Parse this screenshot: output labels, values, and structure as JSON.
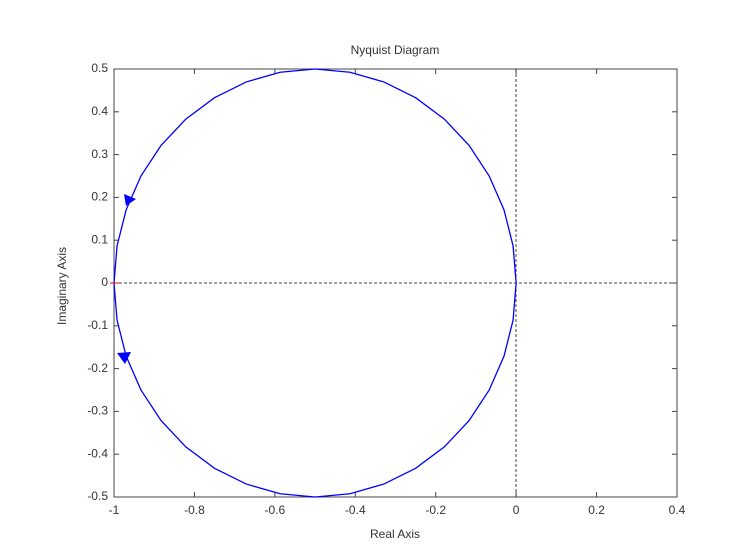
{
  "chart_data": {
    "type": "line",
    "title": "Nyquist Diagram",
    "x_label": "Real Axis",
    "y_label": "Imaginary Axis",
    "x": [
      -1,
      -0.9924,
      -0.9698,
      -0.933,
      -0.883,
      -0.8214,
      -0.75,
      -0.671,
      -0.5868,
      -0.5,
      -0.4132,
      -0.329,
      -0.25,
      -0.1786,
      -0.117,
      -0.067,
      -0.0302,
      -0.0076,
      0,
      -0.0076,
      -0.0302,
      -0.067,
      -0.117,
      -0.1786,
      -0.25,
      -0.329,
      -0.4132,
      -0.5,
      -0.5868,
      -0.671,
      -0.75,
      -0.8214,
      -0.883,
      -0.933,
      -0.9698,
      -0.9924,
      -1
    ],
    "series": [
      {
        "color": "#0000ff",
        "values": [
          0,
          0.0868,
          0.171,
          0.25,
          0.3214,
          0.383,
          0.433,
          0.4698,
          0.4924,
          0.5,
          0.4924,
          0.4698,
          0.433,
          0.383,
          0.3214,
          0.25,
          0.171,
          0.0868,
          0,
          -0.0868,
          -0.171,
          -0.25,
          -0.3214,
          -0.383,
          -0.433,
          -0.4698,
          -0.4924,
          -0.5,
          -0.4924,
          -0.4698,
          -0.433,
          -0.383,
          -0.3214,
          -0.25,
          -0.171,
          -0.0868,
          0
        ]
      }
    ],
    "xlim": [
      -1,
      0.4
    ],
    "xticks": [
      -1,
      -0.8,
      -0.6,
      -0.4,
      -0.2,
      0,
      0.2,
      0.4
    ],
    "ylim": [
      -0.5,
      0.5
    ],
    "yticks": [
      -0.5,
      -0.4,
      -0.3,
      -0.2,
      -0.1,
      0,
      0.1,
      0.2,
      0.3,
      0.4,
      0.5
    ]
  }
}
